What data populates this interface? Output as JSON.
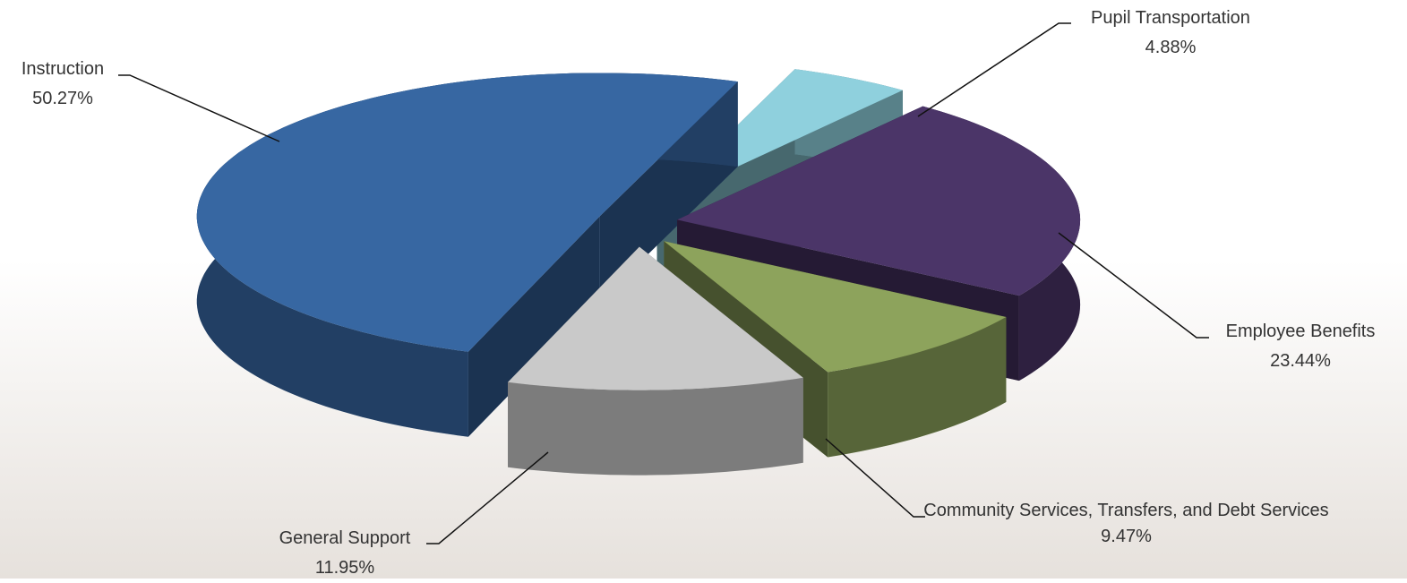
{
  "chart_data": {
    "type": "pie",
    "categories": [
      "Pupil Transportation",
      "Employee Benefits",
      "Community Services, Transfers, and Debt Services",
      "General Support",
      "Instruction"
    ],
    "values": [
      4.88,
      23.44,
      9.47,
      11.95,
      50.27
    ],
    "value_labels": [
      "4.88%",
      "23.44%",
      "9.47%",
      "11.95%",
      "50.27%"
    ],
    "colors": [
      "#8fd0dd",
      "#4b3568",
      "#8da35c",
      "#c9c9c9",
      "#3767a2"
    ]
  }
}
